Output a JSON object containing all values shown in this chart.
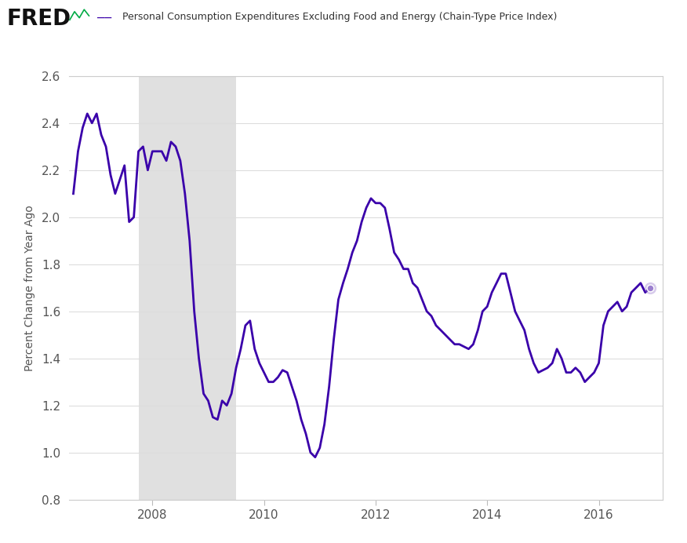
{
  "title": "Personal Consumption Expenditures Excluding Food and Energy (Chain-Type Price Index)",
  "ylabel": "Percent Change from Year Ago",
  "line_color": "#3A00AA",
  "recession_color": "#E0E0E0",
  "recession_start": 2007.75,
  "recession_end": 2009.5,
  "ylim": [
    0.8,
    2.6
  ],
  "yticks": [
    0.8,
    1.0,
    1.2,
    1.4,
    1.6,
    1.8,
    2.0,
    2.2,
    2.4,
    2.6
  ],
  "xlim_start": 2006.5,
  "xlim_end": 2017.15,
  "xtick_years": [
    2008,
    2010,
    2012,
    2014,
    2016
  ],
  "bg_color": "#ffffff",
  "grid_color": "#dddddd",
  "endpoint_color": "#9B7FCF",
  "endpoint_value": 1.7,
  "endpoint_x": 2016.917,
  "data": [
    [
      2006.583,
      2.1
    ],
    [
      2006.667,
      2.28
    ],
    [
      2006.75,
      2.38
    ],
    [
      2006.833,
      2.44
    ],
    [
      2006.917,
      2.4
    ],
    [
      2007.0,
      2.44
    ],
    [
      2007.083,
      2.35
    ],
    [
      2007.167,
      2.3
    ],
    [
      2007.25,
      2.18
    ],
    [
      2007.333,
      2.1
    ],
    [
      2007.417,
      2.16
    ],
    [
      2007.5,
      2.22
    ],
    [
      2007.583,
      1.98
    ],
    [
      2007.667,
      2.0
    ],
    [
      2007.75,
      2.28
    ],
    [
      2007.833,
      2.3
    ],
    [
      2007.917,
      2.2
    ],
    [
      2008.0,
      2.28
    ],
    [
      2008.083,
      2.28
    ],
    [
      2008.167,
      2.28
    ],
    [
      2008.25,
      2.24
    ],
    [
      2008.333,
      2.32
    ],
    [
      2008.417,
      2.3
    ],
    [
      2008.5,
      2.24
    ],
    [
      2008.583,
      2.1
    ],
    [
      2008.667,
      1.9
    ],
    [
      2008.75,
      1.6
    ],
    [
      2008.833,
      1.4
    ],
    [
      2008.917,
      1.25
    ],
    [
      2009.0,
      1.22
    ],
    [
      2009.083,
      1.15
    ],
    [
      2009.167,
      1.14
    ],
    [
      2009.25,
      1.22
    ],
    [
      2009.333,
      1.2
    ],
    [
      2009.417,
      1.25
    ],
    [
      2009.5,
      1.36
    ],
    [
      2009.583,
      1.44
    ],
    [
      2009.667,
      1.54
    ],
    [
      2009.75,
      1.56
    ],
    [
      2009.833,
      1.44
    ],
    [
      2009.917,
      1.38
    ],
    [
      2010.0,
      1.34
    ],
    [
      2010.083,
      1.3
    ],
    [
      2010.167,
      1.3
    ],
    [
      2010.25,
      1.32
    ],
    [
      2010.333,
      1.35
    ],
    [
      2010.417,
      1.34
    ],
    [
      2010.5,
      1.28
    ],
    [
      2010.583,
      1.22
    ],
    [
      2010.667,
      1.14
    ],
    [
      2010.75,
      1.08
    ],
    [
      2010.833,
      1.0
    ],
    [
      2010.917,
      0.98
    ],
    [
      2011.0,
      1.02
    ],
    [
      2011.083,
      1.12
    ],
    [
      2011.167,
      1.28
    ],
    [
      2011.25,
      1.48
    ],
    [
      2011.333,
      1.65
    ],
    [
      2011.417,
      1.72
    ],
    [
      2011.5,
      1.78
    ],
    [
      2011.583,
      1.85
    ],
    [
      2011.667,
      1.9
    ],
    [
      2011.75,
      1.98
    ],
    [
      2011.833,
      2.04
    ],
    [
      2011.917,
      2.08
    ],
    [
      2012.0,
      2.06
    ],
    [
      2012.083,
      2.06
    ],
    [
      2012.167,
      2.04
    ],
    [
      2012.25,
      1.95
    ],
    [
      2012.333,
      1.85
    ],
    [
      2012.417,
      1.82
    ],
    [
      2012.5,
      1.78
    ],
    [
      2012.583,
      1.78
    ],
    [
      2012.667,
      1.72
    ],
    [
      2012.75,
      1.7
    ],
    [
      2012.833,
      1.65
    ],
    [
      2012.917,
      1.6
    ],
    [
      2013.0,
      1.58
    ],
    [
      2013.083,
      1.54
    ],
    [
      2013.167,
      1.52
    ],
    [
      2013.25,
      1.5
    ],
    [
      2013.333,
      1.48
    ],
    [
      2013.417,
      1.46
    ],
    [
      2013.5,
      1.46
    ],
    [
      2013.583,
      1.45
    ],
    [
      2013.667,
      1.44
    ],
    [
      2013.75,
      1.46
    ],
    [
      2013.833,
      1.52
    ],
    [
      2013.917,
      1.6
    ],
    [
      2014.0,
      1.62
    ],
    [
      2014.083,
      1.68
    ],
    [
      2014.167,
      1.72
    ],
    [
      2014.25,
      1.76
    ],
    [
      2014.333,
      1.76
    ],
    [
      2014.417,
      1.68
    ],
    [
      2014.5,
      1.6
    ],
    [
      2014.583,
      1.56
    ],
    [
      2014.667,
      1.52
    ],
    [
      2014.75,
      1.44
    ],
    [
      2014.833,
      1.38
    ],
    [
      2014.917,
      1.34
    ],
    [
      2015.0,
      1.35
    ],
    [
      2015.083,
      1.36
    ],
    [
      2015.167,
      1.38
    ],
    [
      2015.25,
      1.44
    ],
    [
      2015.333,
      1.4
    ],
    [
      2015.417,
      1.34
    ],
    [
      2015.5,
      1.34
    ],
    [
      2015.583,
      1.36
    ],
    [
      2015.667,
      1.34
    ],
    [
      2015.75,
      1.3
    ],
    [
      2015.833,
      1.32
    ],
    [
      2015.917,
      1.34
    ],
    [
      2016.0,
      1.38
    ],
    [
      2016.083,
      1.54
    ],
    [
      2016.167,
      1.6
    ],
    [
      2016.25,
      1.62
    ],
    [
      2016.333,
      1.64
    ],
    [
      2016.417,
      1.6
    ],
    [
      2016.5,
      1.62
    ],
    [
      2016.583,
      1.68
    ],
    [
      2016.667,
      1.7
    ],
    [
      2016.75,
      1.72
    ],
    [
      2016.833,
      1.68
    ],
    [
      2016.917,
      1.7
    ]
  ]
}
